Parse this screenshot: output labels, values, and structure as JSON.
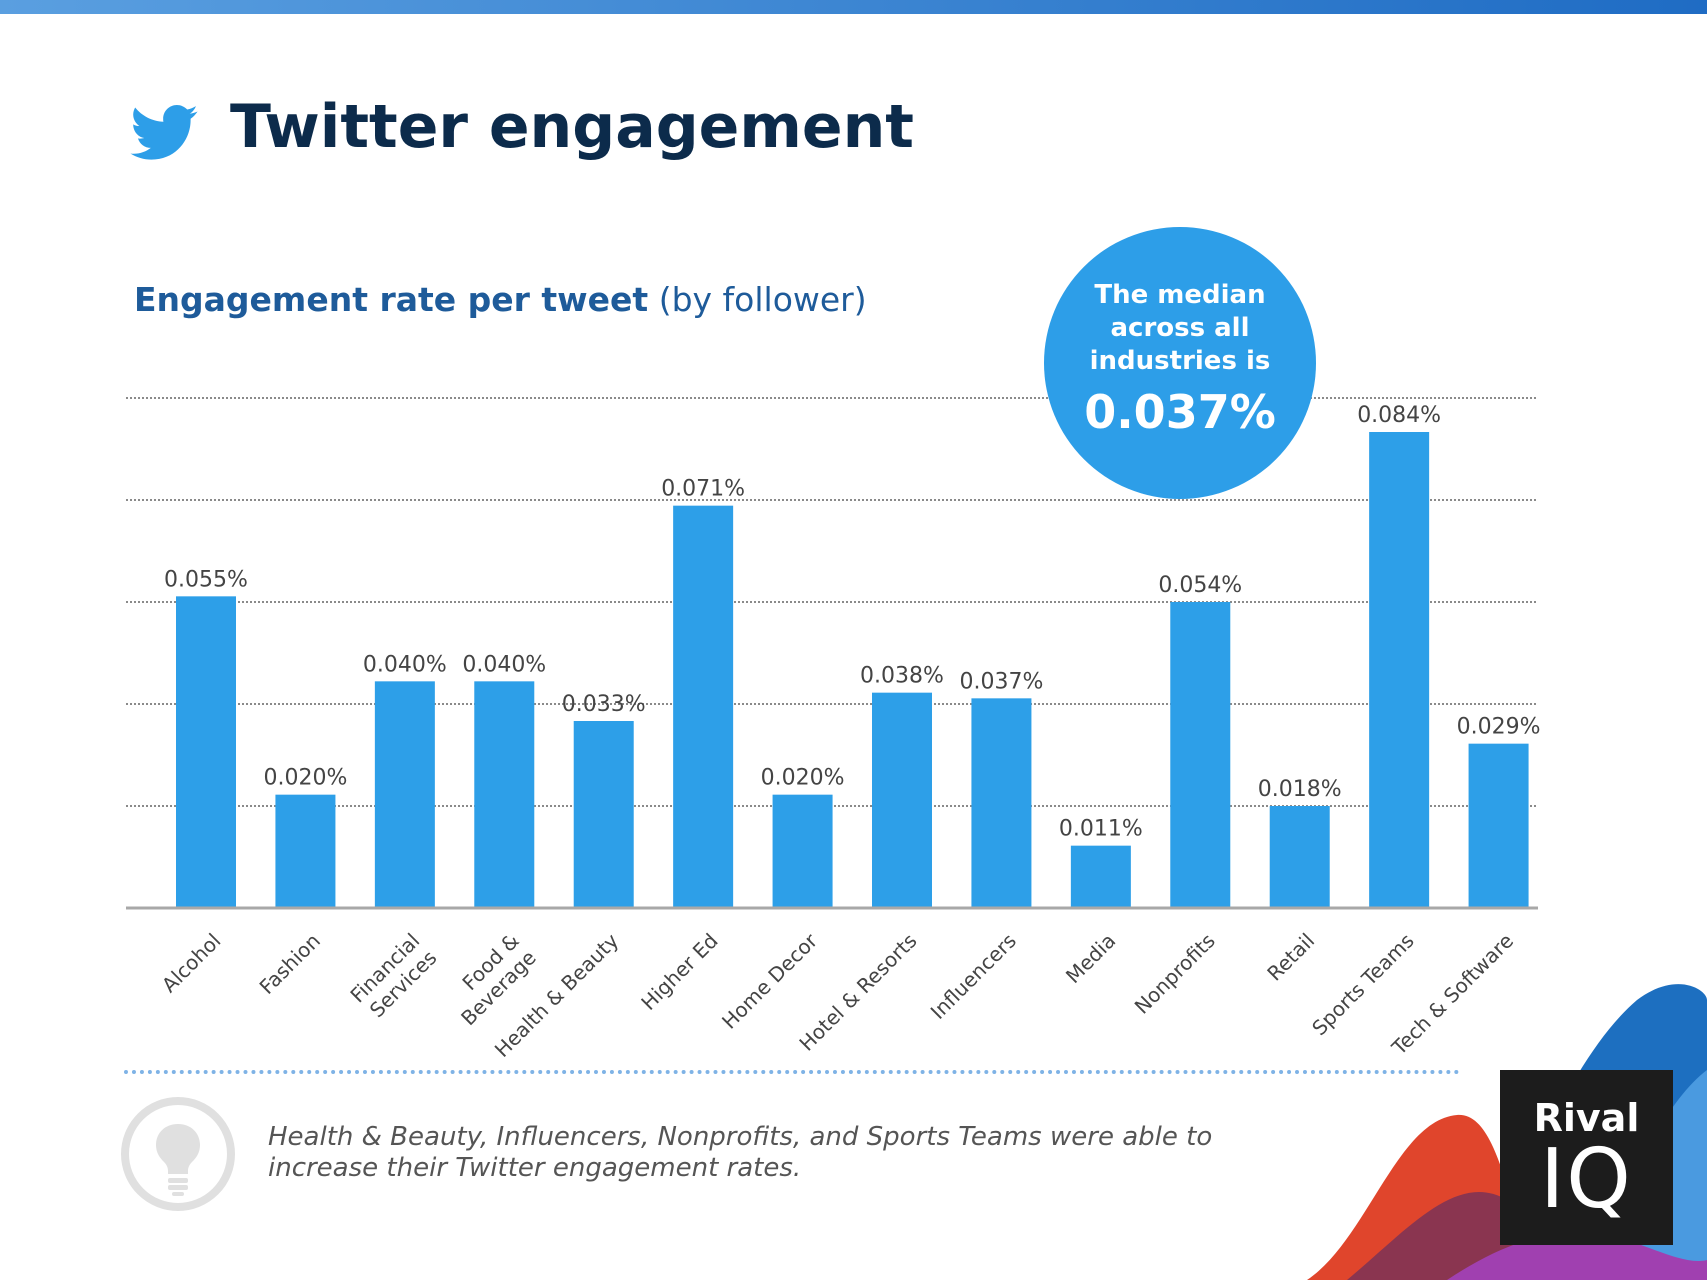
{
  "header": {
    "title": "Twitter engagement",
    "icon": "twitter-bird-icon",
    "bar_color": "#2a78cf"
  },
  "chart_data": {
    "type": "bar",
    "title": "Engagement rate per tweet",
    "title_suffix": "(by follower)",
    "categories": [
      "Alcohol",
      "Fashion",
      "Financial Services",
      "Food & Beverage",
      "Health & Beauty",
      "Higher Ed",
      "Home Decor",
      "Hotel & Resorts",
      "Influencers",
      "Media",
      "Nonprofits",
      "Retail",
      "Sports Teams",
      "Tech & Software"
    ],
    "category_lines": [
      [
        "Alcohol"
      ],
      [
        "Fashion"
      ],
      [
        "Financial",
        "Services"
      ],
      [
        "Food &",
        "Beverage"
      ],
      [
        "Health & Beauty"
      ],
      [
        "Higher Ed"
      ],
      [
        "Home Decor"
      ],
      [
        "Hotel & Resorts"
      ],
      [
        "Influencers"
      ],
      [
        "Media"
      ],
      [
        "Nonprofits"
      ],
      [
        "Retail"
      ],
      [
        "Sports Teams"
      ],
      [
        "Tech & Software"
      ]
    ],
    "values": [
      0.055,
      0.02,
      0.04,
      0.04,
      0.033,
      0.071,
      0.02,
      0.038,
      0.037,
      0.011,
      0.054,
      0.018,
      0.084,
      0.029
    ],
    "value_labels": [
      "0.055%",
      "0.020%",
      "0.040%",
      "0.040%",
      "0.033%",
      "0.071%",
      "0.020%",
      "0.038%",
      "0.037%",
      "0.011%",
      "0.054%",
      "0.018%",
      "0.084%",
      "0.029%"
    ],
    "unit": "%",
    "ylim": [
      0,
      0.09
    ],
    "gridlines": [
      0.018,
      0.036,
      0.054,
      0.072,
      0.09
    ],
    "bar_color": "#2d9fe8",
    "xlabel": "",
    "ylabel": ""
  },
  "median_callout": {
    "text": "The median across all industries is",
    "value": "0.037%",
    "color": "#2d9ee8"
  },
  "footer": {
    "note": "Health & Beauty, Influencers, Nonprofits, and Sports Teams were able to increase their Twitter engagement rates.",
    "icon": "lightbulb-icon"
  },
  "logo": {
    "line1": "Rival",
    "line2": "IQ"
  }
}
